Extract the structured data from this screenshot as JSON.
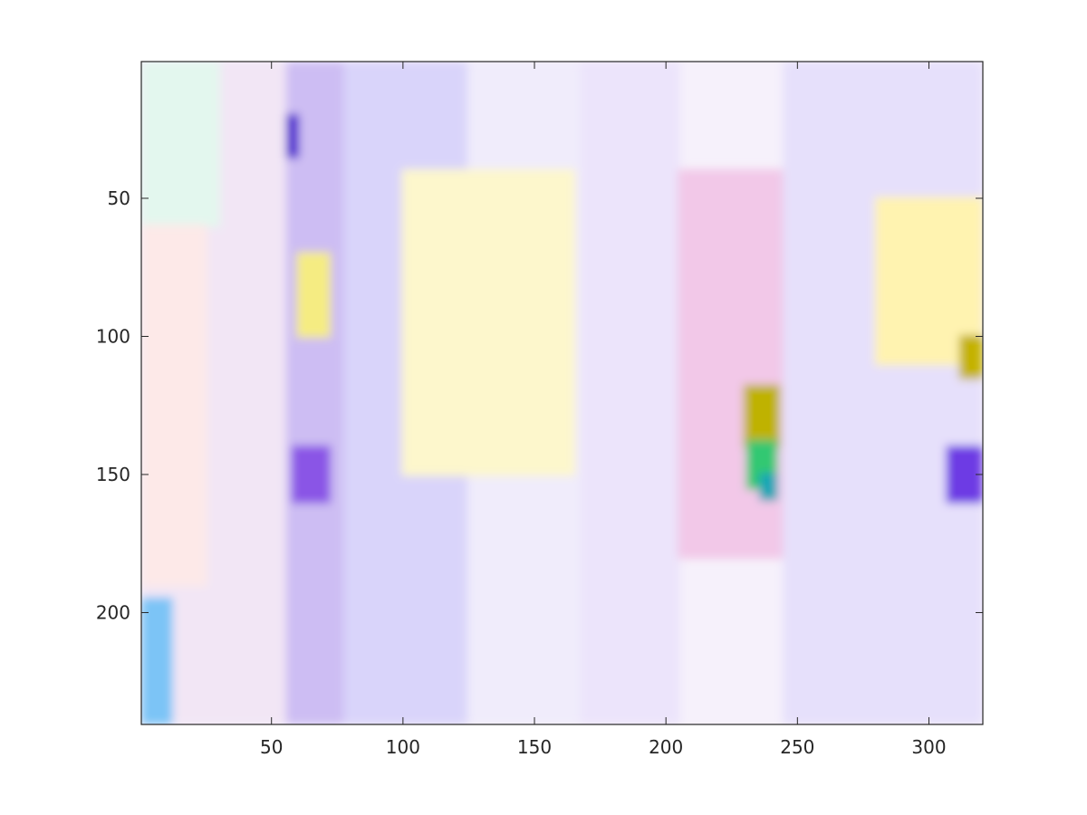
{
  "chart_data": {
    "type": "heatmap",
    "description_visible": "optical flow color-coded image",
    "x_ticks": [
      50,
      100,
      150,
      200,
      250,
      300
    ],
    "y_ticks": [
      50,
      100,
      150,
      200
    ],
    "xlim": [
      0.5,
      320.5
    ],
    "ylim": [
      0.5,
      240.5
    ],
    "y_direction": "reverse",
    "title": "",
    "xlabel": "",
    "ylabel": "",
    "regions": [
      {
        "x": [
          1,
          55
        ],
        "y": [
          1,
          240
        ],
        "color": "#f2e6f5"
      },
      {
        "x": [
          1,
          30
        ],
        "y": [
          1,
          60
        ],
        "color": "#e3f7ee"
      },
      {
        "x": [
          1,
          25
        ],
        "y": [
          60,
          190
        ],
        "color": "#fde9e8"
      },
      {
        "x": [
          1,
          12
        ],
        "y": [
          195,
          240
        ],
        "color": "#7cc4f6"
      },
      {
        "x": [
          56,
          78
        ],
        "y": [
          1,
          240
        ],
        "color": "#cdbdf3"
      },
      {
        "x": [
          78,
          125
        ],
        "y": [
          1,
          240
        ],
        "color": "#d9d4fa"
      },
      {
        "x": [
          125,
          168
        ],
        "y": [
          1,
          240
        ],
        "color": "#f0ecfb"
      },
      {
        "x": [
          168,
          205
        ],
        "y": [
          1,
          240
        ],
        "color": "#ece4fb"
      },
      {
        "x": [
          205,
          245
        ],
        "y": [
          40,
          180
        ],
        "color": "#f2c8e8"
      },
      {
        "x": [
          245,
          320
        ],
        "y": [
          1,
          240
        ],
        "color": "#e6e0fb"
      },
      {
        "x": [
          100,
          165
        ],
        "y": [
          40,
          150
        ],
        "color": "#fdf7cc"
      },
      {
        "x": [
          280,
          320
        ],
        "y": [
          50,
          110
        ],
        "color": "#fff3b0"
      },
      {
        "x": [
          60,
          72
        ],
        "y": [
          70,
          100
        ],
        "color": "#f5ec82"
      },
      {
        "x": [
          58,
          72
        ],
        "y": [
          140,
          160
        ],
        "color": "#8a54e6"
      },
      {
        "x": [
          230,
          243
        ],
        "y": [
          118,
          140
        ],
        "color": "#bfb200"
      },
      {
        "x": [
          231,
          242
        ],
        "y": [
          138,
          155
        ],
        "color": "#32c872"
      },
      {
        "x": [
          236,
          242
        ],
        "y": [
          150,
          159
        ],
        "color": "#15a6b6"
      },
      {
        "x": [
          307,
          320
        ],
        "y": [
          140,
          160
        ],
        "color": "#6d3ae4"
      },
      {
        "x": [
          312,
          320
        ],
        "y": [
          100,
          115
        ],
        "color": "#c4b200"
      },
      {
        "x": [
          56,
          60
        ],
        "y": [
          20,
          35
        ],
        "color": "#4b1ccf"
      }
    ]
  }
}
